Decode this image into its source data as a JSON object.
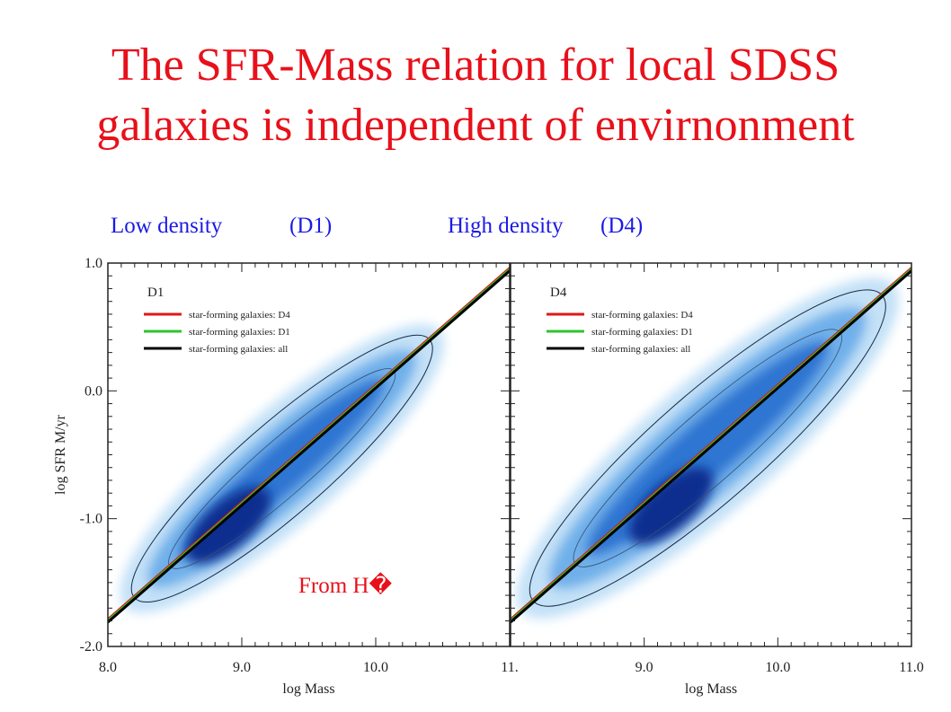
{
  "title": {
    "line1": "The SFR-Mass relation for local SDSS",
    "line2": "galaxies is independent of envirnonment"
  },
  "density_labels": {
    "low_name": "Low density",
    "low_code": "(D1)",
    "high_name": "High density",
    "high_code": "(D4)"
  },
  "annotation": "From H�",
  "colors": {
    "title": "#e8101a",
    "labels": "#1a1ae6",
    "density_dark": "#0d2f8f",
    "density_mid": "#2f7fd6",
    "density_light": "#a9d3f2",
    "line_d4": "#e01818",
    "line_d1": "#2fc42f",
    "line_all": "#000000"
  },
  "chart_data": [
    {
      "type": "heatmap",
      "panel_label": "D1",
      "xlabel": "log Mass",
      "ylabel": "log SFR  M/yr",
      "xlim": [
        8.0,
        11.0
      ],
      "ylim": [
        -2.0,
        1.0
      ],
      "xticks": [
        "8.0",
        "9.0",
        "10.0",
        "11."
      ],
      "yticks": [
        "1.0",
        "0.0",
        "-1.0",
        "-2.0"
      ],
      "legend_position": "top-left",
      "series": [
        {
          "name": "star-forming galaxies: D4",
          "color": "#e01818",
          "x": [
            8.0,
            11.0
          ],
          "y": [
            -1.8,
            0.95
          ]
        },
        {
          "name": "star-forming galaxies: D1",
          "color": "#2fc42f",
          "x": [
            8.0,
            11.0
          ],
          "y": [
            -1.8,
            0.95
          ]
        },
        {
          "name": "star-forming galaxies: all",
          "color": "#000000",
          "x": [
            8.0,
            11.0
          ],
          "y": [
            -1.8,
            0.95
          ]
        }
      ],
      "density_peak": {
        "x": 8.9,
        "y": -1.05
      }
    },
    {
      "type": "heatmap",
      "panel_label": "D4",
      "xlabel": "log Mass",
      "ylabel": "",
      "xlim": [
        8.0,
        11.0
      ],
      "ylim": [
        -2.0,
        1.0
      ],
      "xticks": [
        "9.0",
        "10.0",
        "11.0"
      ],
      "yticks": [],
      "legend_position": "top-left",
      "series": [
        {
          "name": "star-forming galaxies: D4",
          "color": "#e01818",
          "x": [
            8.0,
            11.0
          ],
          "y": [
            -1.8,
            0.95
          ]
        },
        {
          "name": "star-forming galaxies: D1",
          "color": "#2fc42f",
          "x": [
            8.0,
            11.0
          ],
          "y": [
            -1.8,
            0.95
          ]
        },
        {
          "name": "star-forming galaxies: all",
          "color": "#000000",
          "x": [
            8.0,
            11.0
          ],
          "y": [
            -1.8,
            0.95
          ]
        }
      ],
      "density_peak": {
        "x": 9.2,
        "y": -0.9
      }
    }
  ]
}
